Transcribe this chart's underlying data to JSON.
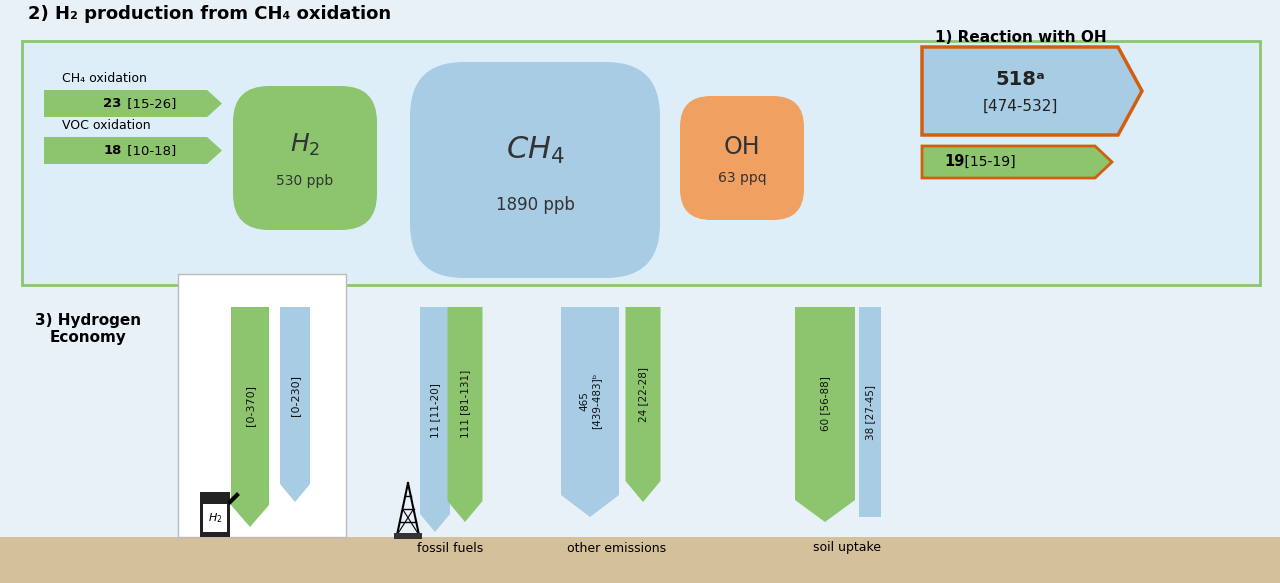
{
  "bg_color": "#e8f0f8",
  "bg_inner_top": "#d8eaf6",
  "green": "#8dc56e",
  "blue": "#a8cce4",
  "orange": "#f0a060",
  "orange_bdr": "#d06010",
  "ground_color": "#d4c09a",
  "white_box": "#ffffff",
  "title_top": "2) H₂ production from CH₄ oxidation",
  "title_rxn": "1) Reaction with OH",
  "title_he": "3) Hydrogen\nEconomy",
  "ch4_ox_label": "CH₄ oxidation",
  "ch4_ox_bold": "23",
  "ch4_ox_range": "[15-26]",
  "voc_ox_label": "VOC oxidation",
  "voc_ox_bold": "18",
  "voc_ox_range": "[10-18]",
  "h2_main": "H₂",
  "h2_sub": "530 ppb",
  "ch4_main": "CH₄",
  "ch4_sub": "1890 ppb",
  "oh_main": "OH",
  "oh_sub": "63 ppq",
  "rxn_bold": "518ᵃ",
  "rxn_range": "[474-532]",
  "rxn19_bold": "19",
  "rxn19_range": " [15-19]",
  "ff_g_text": "111 [81-131]",
  "ff_b_text": "11 [11-20]",
  "oe_b_bold": "465",
  "oe_b_range": "[439-483]ᵇ",
  "oe_g_text": "24 [22-28]",
  "su_g_bold": "60",
  "su_g_range": "[56-88]",
  "su_b_text": "38 [27-45]",
  "h2_group_g": "[0-370]",
  "h2_group_b": "[0-230]",
  "ff_label": "fossil fuels",
  "oe_label": "other emissions",
  "su_label": "soil uptake"
}
